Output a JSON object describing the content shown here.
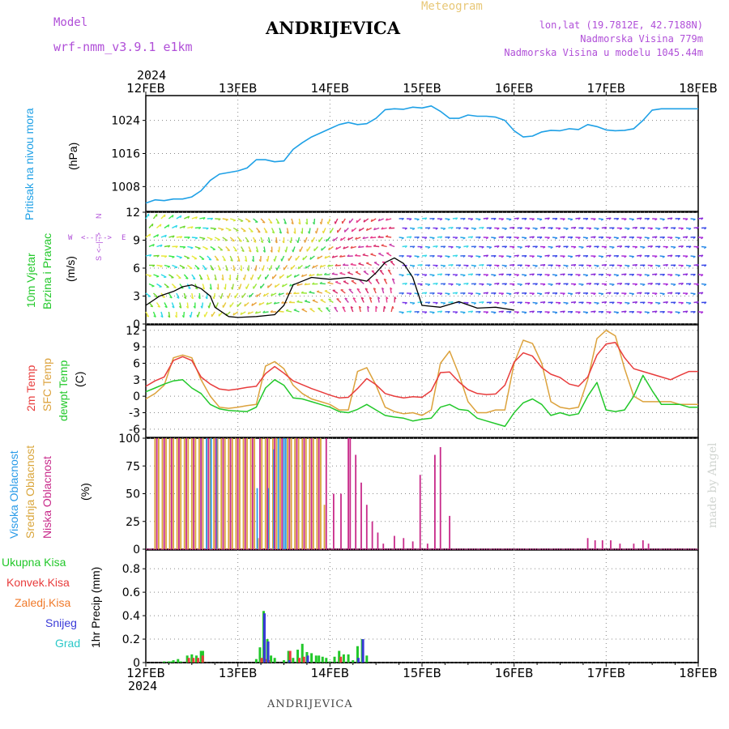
{
  "header": {
    "title": "ANDRIJEVICA",
    "meteogram_label": "Meteogram",
    "model_label": "Model",
    "model_name": "wrf-nmm_v3.9.1 e1km",
    "lonlat": "lon,lat (19.7812E, 42.7188N)",
    "altitude": "Nadmorska Visina 779m",
    "model_altitude": "Nadmorska Visina u modelu 1045.44m",
    "year_top": "2024",
    "year_bottom": "2024",
    "footer_title": "ANDRIJEVICA",
    "credit": "made by Angel"
  },
  "colors": {
    "pressure": "#1ea0e6",
    "temp2m": "#e83c3c",
    "sfc_temp": "#dca23c",
    "dewpt": "#22c82a",
    "high_cloud": "#2a9be8",
    "mid_cloud": "#d9a53a",
    "low_cloud": "#c82a8a",
    "total_precip": "#22c82a",
    "conv_precip": "#e83c3c",
    "freezing_precip": "#f07a2a",
    "snow": "#3a3ad8",
    "hail": "#2ac8c8",
    "label_violet": "#b04fd8"
  },
  "axis_labels": {
    "pressure": [
      "Pritisak na nivou mora",
      "(hPa)"
    ],
    "wind": [
      "10m Vjetar",
      "Brzina i Pravac",
      "(m/s)"
    ],
    "wind_compass": [
      "W",
      "<--|-->",
      "E",
      "N",
      "<--|-->",
      "S"
    ],
    "temp": [
      "2m Temp",
      "SFC Temp",
      "dewpt Temp",
      "(C)"
    ],
    "cloud": [
      "Visoka Oblacnost",
      "Srednja Oblacnost",
      "Niska Oblacnost",
      "(%)"
    ],
    "precip_legend": [
      "Ukupna Kisa",
      "Konvek.Kisa",
      "Zaledj.Kisa",
      "Snijeg",
      "Grad"
    ],
    "precip_unit": "1hr Precip (mm)"
  },
  "chart_data": [
    {
      "panel": "pressure",
      "type": "line",
      "x_dates": [
        "12FEB",
        "13FEB",
        "14FEB",
        "15FEB",
        "16FEB",
        "17FEB",
        "18FEB"
      ],
      "xlim_days": [
        0,
        6
      ],
      "ylabel": "Pritisak na nivou mora (hPa)",
      "yticks": [
        1008,
        1016,
        1024
      ],
      "ylim": [
        1002,
        1030
      ],
      "grid": true,
      "series": [
        {
          "name": "Pritisak na nivou mora",
          "x": [
            0,
            0.1,
            0.2,
            0.3,
            0.4,
            0.5,
            0.6,
            0.7,
            0.8,
            0.9,
            1.0,
            1.1,
            1.2,
            1.3,
            1.4,
            1.5,
            1.6,
            1.7,
            1.8,
            1.9,
            2.0,
            2.1,
            2.2,
            2.3,
            2.4,
            2.5,
            2.6,
            2.7,
            2.8,
            2.9,
            3.0,
            3.1,
            3.2,
            3.3,
            3.4,
            3.5,
            3.6,
            3.7,
            3.8,
            3.9,
            4.0,
            4.1,
            4.2,
            4.3,
            4.4,
            4.5,
            4.6,
            4.7,
            4.8,
            4.9,
            5.0,
            5.1,
            5.2,
            5.3,
            5.4,
            5.5,
            5.6,
            5.7,
            5.8,
            5.9,
            6.0
          ],
          "y": [
            1004,
            1004.8,
            1004.6,
            1005,
            1005,
            1005.5,
            1007,
            1009.5,
            1011,
            1011.4,
            1011.8,
            1012.5,
            1014.5,
            1014.5,
            1014,
            1014.2,
            1017,
            1018.6,
            1020,
            1021,
            1022,
            1023,
            1023.5,
            1023,
            1023.2,
            1024.5,
            1026.6,
            1026.8,
            1026.7,
            1027.2,
            1027,
            1027.5,
            1026.2,
            1024.5,
            1024.5,
            1025.3,
            1025,
            1025,
            1024.8,
            1024,
            1021.5,
            1020,
            1020.2,
            1021.2,
            1021.6,
            1021.5,
            1022,
            1021.8,
            1023,
            1022.5,
            1021.7,
            1021.5,
            1021.6,
            1022,
            1024,
            1026.5,
            1026.8,
            1026.8,
            1026.8,
            1026.8,
            1026.8
          ]
        }
      ]
    },
    {
      "panel": "wind",
      "type": "line",
      "ylabel": "10m Vjetar Brzina i Pravac (m/s)",
      "yticks": [
        0,
        3,
        6,
        9,
        12
      ],
      "ylim": [
        0,
        12
      ],
      "series": [
        {
          "name": "Brzina",
          "x": [
            0,
            0.15,
            0.3,
            0.4,
            0.5,
            0.6,
            0.7,
            0.75,
            0.9,
            1.0,
            1.2,
            1.4,
            1.5,
            1.6,
            1.8,
            2.0,
            2.2,
            2.4,
            2.5,
            2.6,
            2.7,
            2.8,
            2.9,
            3.0,
            3.2,
            3.4,
            3.6,
            3.8,
            4.0
          ],
          "y": [
            2,
            3,
            3.5,
            4,
            4.2,
            3.8,
            3,
            1.8,
            0.8,
            0.7,
            0.8,
            1,
            2,
            4.2,
            5,
            4.8,
            5,
            4.6,
            5.5,
            6.6,
            7.1,
            6.5,
            5,
            2,
            1.8,
            2.4,
            1.7,
            1.8,
            1.5
          ]
        }
      ]
    },
    {
      "panel": "temp",
      "type": "line",
      "ylabel": "(C)",
      "yticks": [
        -6,
        -3,
        0,
        3,
        6,
        9,
        12
      ],
      "ylim": [
        -7.5,
        13
      ],
      "series": [
        {
          "name": "2m Temp",
          "x": [
            0,
            0.1,
            0.2,
            0.3,
            0.4,
            0.5,
            0.6,
            0.7,
            0.8,
            0.9,
            1.0,
            1.1,
            1.2,
            1.3,
            1.4,
            1.5,
            1.6,
            1.7,
            1.8,
            1.9,
            2.0,
            2.1,
            2.2,
            2.3,
            2.4,
            2.5,
            2.6,
            2.7,
            2.8,
            2.9,
            3.0,
            3.1,
            3.2,
            3.3,
            3.4,
            3.5,
            3.6,
            3.7,
            3.8,
            3.9,
            4.0,
            4.1,
            4.2,
            4.3,
            4.4,
            4.5,
            4.6,
            4.7,
            4.8,
            4.9,
            5.0,
            5.1,
            5.2,
            5.3,
            5.4,
            5.5,
            5.6,
            5.7,
            5.8,
            5.9,
            6.0
          ],
          "y": [
            1.8,
            2.8,
            3.5,
            6.5,
            7.2,
            6.5,
            3.5,
            2.2,
            1.3,
            1.1,
            1.3,
            1.6,
            1.8,
            4.1,
            5.4,
            4.2,
            2.8,
            2.1,
            1.4,
            0.8,
            0.2,
            -0.3,
            -0.2,
            1.4,
            3.2,
            2.1,
            0.5,
            0,
            -0.3,
            -0.1,
            -0.2,
            1,
            4.3,
            4.4,
            2.6,
            1.2,
            0.5,
            0.3,
            0.4,
            2,
            6.2,
            7.9,
            7.3,
            5.2,
            4,
            3.4,
            2.2,
            1.8,
            3.5,
            7.5,
            9.5,
            9.8,
            7,
            5,
            4.5,
            4,
            3.5,
            3,
            3.8,
            4.5,
            4.5
          ]
        },
        {
          "name": "SFC Temp",
          "x": [
            0,
            0.1,
            0.2,
            0.3,
            0.4,
            0.5,
            0.6,
            0.7,
            0.8,
            0.9,
            1.0,
            1.1,
            1.2,
            1.3,
            1.4,
            1.5,
            1.6,
            1.7,
            1.8,
            1.9,
            2.0,
            2.1,
            2.2,
            2.3,
            2.4,
            2.5,
            2.6,
            2.7,
            2.8,
            2.9,
            3.0,
            3.1,
            3.2,
            3.3,
            3.4,
            3.5,
            3.6,
            3.7,
            3.8,
            3.9,
            4.0,
            4.1,
            4.2,
            4.3,
            4.4,
            4.5,
            4.6,
            4.7,
            4.8,
            4.9,
            5.0,
            5.1,
            5.2,
            5.3,
            5.4,
            5.5,
            5.6,
            5.7,
            5.8,
            5.9,
            6.0
          ],
          "y": [
            -0.5,
            0.5,
            2,
            7,
            7.5,
            7,
            3,
            0,
            -2,
            -2.2,
            -2,
            -1.7,
            -1.5,
            5.5,
            6.3,
            5,
            2,
            0.5,
            -0.5,
            -1,
            -1.5,
            -2.5,
            -2.5,
            4.5,
            5.2,
            2,
            -2,
            -2.8,
            -3.2,
            -3,
            -3.5,
            -2.5,
            6,
            8.2,
            4,
            -1,
            -3,
            -3,
            -2.5,
            -2.5,
            6,
            10.2,
            9.6,
            6,
            -1,
            -2,
            -2.3,
            -2,
            3,
            10.5,
            12,
            11,
            5,
            0,
            -1,
            -1,
            -1,
            -1,
            -1.5,
            -1.5,
            -1.5
          ]
        },
        {
          "name": "dewpt Temp",
          "x": [
            0,
            0.1,
            0.2,
            0.3,
            0.4,
            0.5,
            0.6,
            0.7,
            0.8,
            0.9,
            1.0,
            1.1,
            1.2,
            1.3,
            1.4,
            1.5,
            1.6,
            1.7,
            1.8,
            1.9,
            2.0,
            2.1,
            2.2,
            2.3,
            2.4,
            2.5,
            2.6,
            2.7,
            2.8,
            2.9,
            3.0,
            3.1,
            3.2,
            3.3,
            3.4,
            3.5,
            3.6,
            3.7,
            3.8,
            3.9,
            4.0,
            4.1,
            4.2,
            4.3,
            4.4,
            4.5,
            4.6,
            4.7,
            4.8,
            4.9,
            5.0,
            5.1,
            5.2,
            5.3,
            5.4,
            5.5,
            5.6,
            5.7,
            5.8,
            5.9,
            6.0
          ],
          "y": [
            0.8,
            1.5,
            2.2,
            2.8,
            3,
            1.5,
            0.5,
            -1.5,
            -2.3,
            -2.6,
            -2.7,
            -2.8,
            -2,
            1.5,
            3,
            2,
            -0.3,
            -0.5,
            -1,
            -1.5,
            -2,
            -2.8,
            -3,
            -2.4,
            -1.5,
            -2.5,
            -3.5,
            -3.8,
            -4,
            -4.5,
            -4.2,
            -4,
            -2,
            -1.5,
            -2.4,
            -2.6,
            -4,
            -4.5,
            -5,
            -5.5,
            -3,
            -1.2,
            -0.5,
            -1.5,
            -3.5,
            -3,
            -3.5,
            -3.2,
            0,
            2.5,
            -2.5,
            -2.8,
            -2.5,
            0,
            3.8,
            1,
            -1.5,
            -1.5,
            -1.5,
            -2,
            -2
          ]
        }
      ]
    },
    {
      "panel": "cloud",
      "type": "bar",
      "ylabel": "(%)",
      "yticks": [
        0,
        25,
        50,
        75,
        100
      ],
      "ylim": [
        0,
        100
      ],
      "series": [
        {
          "name": "Visoka Oblacnost",
          "x": [
            0.6,
            0.66,
            0.71,
            0.77,
            1.21,
            1.33,
            1.39,
            1.44,
            1.5,
            1.52
          ],
          "y": [
            100,
            100,
            100,
            100,
            55,
            55,
            90,
            100,
            100,
            100
          ]
        },
        {
          "name": "Srednja Oblacnost",
          "x": [
            0.1,
            0.14,
            0.18,
            0.22,
            0.26,
            0.3,
            0.34,
            0.38,
            0.42,
            0.46,
            0.5,
            0.54,
            0.58,
            0.62,
            0.66,
            0.7,
            0.74,
            0.78,
            0.82,
            0.86,
            0.9,
            0.94,
            0.98,
            1.02,
            1.06,
            1.1,
            1.14,
            1.18,
            1.22,
            1.26,
            1.3,
            1.34,
            1.38,
            1.42,
            1.46,
            1.5,
            1.54,
            1.58,
            1.62,
            1.66,
            1.7,
            1.74,
            1.78,
            1.82,
            1.86,
            1.9,
            1.94
          ],
          "y": [
            100,
            100,
            100,
            100,
            100,
            100,
            100,
            100,
            100,
            100,
            100,
            100,
            100,
            100,
            100,
            100,
            100,
            100,
            100,
            100,
            100,
            100,
            100,
            100,
            100,
            100,
            100,
            100,
            10,
            100,
            100,
            100,
            100,
            100,
            100,
            100,
            100,
            100,
            100,
            100,
            100,
            100,
            100,
            100,
            100,
            100,
            40
          ]
        },
        {
          "name": "Niska Oblacnost",
          "x": [
            0.12,
            0.2,
            0.28,
            0.36,
            0.44,
            0.52,
            0.6,
            0.68,
            0.76,
            0.84,
            0.92,
            1.0,
            1.08,
            1.16,
            1.24,
            1.32,
            1.4,
            1.48,
            1.56,
            1.64,
            1.72,
            1.8,
            1.88,
            1.96,
            2.04,
            2.12,
            2.2,
            2.22,
            2.28,
            2.34,
            2.4,
            2.46,
            2.52,
            2.58,
            2.7,
            2.8,
            2.9,
            2.98,
            3.06,
            3.14,
            3.2,
            3.3,
            4.8,
            4.88,
            4.96,
            5.05,
            5.15,
            5.3,
            5.4,
            5.46
          ],
          "y": [
            100,
            100,
            100,
            100,
            100,
            100,
            100,
            100,
            100,
            100,
            100,
            100,
            100,
            100,
            100,
            100,
            100,
            100,
            100,
            100,
            100,
            100,
            100,
            100,
            50,
            50,
            100,
            100,
            85,
            60,
            40,
            25,
            15,
            5,
            12,
            10,
            7,
            67,
            5,
            85,
            92,
            30,
            10,
            8,
            8,
            8,
            5,
            5,
            8,
            5
          ]
        }
      ]
    },
    {
      "panel": "precip",
      "type": "bar",
      "ylabel": "1hr Precip (mm)",
      "yticks": [
        0,
        0.2,
        0.4,
        0.6,
        0.8
      ],
      "ylim": [
        0,
        0.96
      ],
      "series": [
        {
          "name": "Ukupna Kisa",
          "x": [
            0.2,
            0.25,
            0.28,
            0.3,
            0.35,
            0.38,
            0.45,
            0.5,
            0.55,
            0.6,
            0.62,
            1.2,
            1.24,
            1.28,
            1.32,
            1.36,
            1.4,
            1.5,
            1.55,
            1.6,
            1.65,
            1.7,
            1.75,
            1.8,
            1.85,
            1.88,
            1.92,
            1.96,
            2.0,
            2.05,
            2.1,
            2.15,
            2.2,
            2.25,
            2.3,
            2.35,
            2.4
          ],
          "y": [
            0.01,
            0.01,
            0.01,
            0.02,
            0.03,
            0.01,
            0.06,
            0.07,
            0.06,
            0.1,
            0.1,
            0.03,
            0.13,
            0.44,
            0.2,
            0.06,
            0.04,
            0.02,
            0.1,
            0.04,
            0.11,
            0.16,
            0.09,
            0.08,
            0.06,
            0.06,
            0.05,
            0.04,
            0.01,
            0.05,
            0.1,
            0.07,
            0.07,
            0.02,
            0.14,
            0.2,
            0.06
          ]
        },
        {
          "name": "Konvek.Kisa",
          "x": [
            0.45,
            0.5,
            0.55,
            0.6,
            1.24,
            1.28,
            1.32,
            1.55,
            1.65,
            1.7,
            2.1
          ],
          "y": [
            0.04,
            0.04,
            0.04,
            0.06,
            0.04,
            0.03,
            0.02,
            0.1,
            0.04,
            0.05,
            0.05
          ]
        },
        {
          "name": "Snijeg",
          "x": [
            1.28,
            1.32,
            1.55,
            1.75,
            2.3,
            2.35
          ],
          "y": [
            0.42,
            0.18,
            0.02,
            0.06,
            0.04,
            0.2
          ]
        }
      ]
    }
  ]
}
